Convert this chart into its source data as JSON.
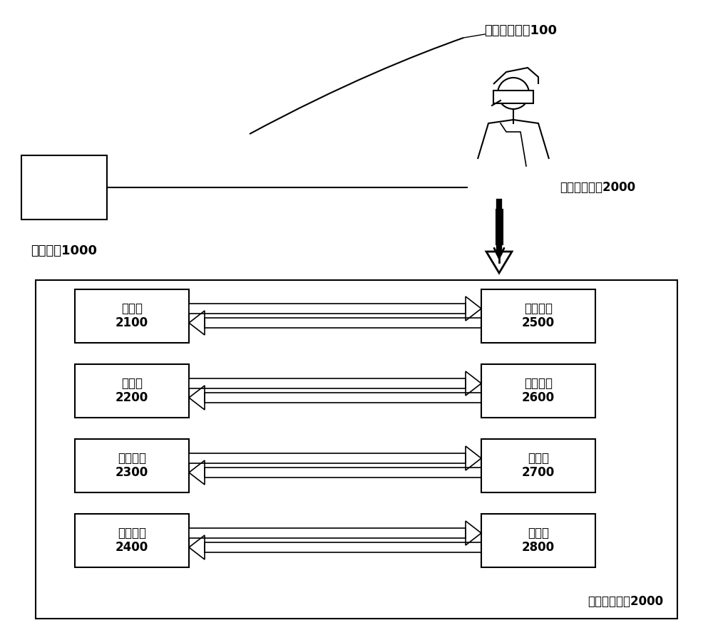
{
  "title": "",
  "bg_color": "#ffffff",
  "system_label": "虚拟现实系统100",
  "input_device_label": "输入设备1000",
  "vr_device_label_top": "虚拟现实设备2000",
  "vr_device_label_bottom": "虚拟现实设备2000",
  "left_boxes": [
    {
      "label": "处理器\n2100",
      "row": 0
    },
    {
      "label": "存储器\n2200",
      "row": 1
    },
    {
      "label": "接口装置\n2300",
      "row": 2
    },
    {
      "label": "通信装置\n2400",
      "row": 3
    }
  ],
  "right_boxes": [
    {
      "label": "显示装置\n2500",
      "row": 0
    },
    {
      "label": "输入装置\n2600",
      "row": 1
    },
    {
      "label": "扬声器\n2700",
      "row": 2
    },
    {
      "label": "麦克风\n2800",
      "row": 3
    }
  ]
}
